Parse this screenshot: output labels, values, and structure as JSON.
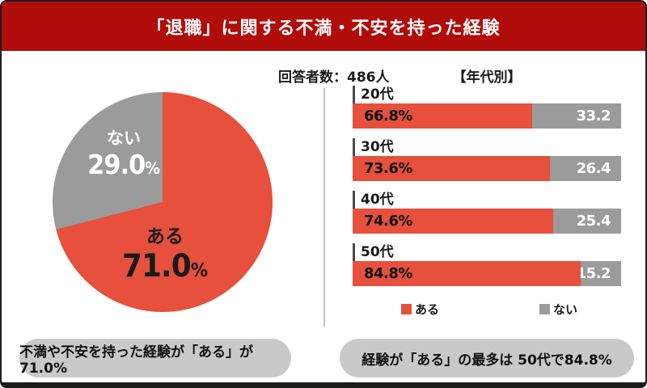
{
  "header": {
    "title": "「退職」に関する不満・不安を持った経験",
    "bg_color": "#b00d0a"
  },
  "meta": {
    "respondents": "回答者数：486人",
    "age_section_title": "【年代別】"
  },
  "colors": {
    "accent_red": "#e6503c",
    "gray": "#9b9b9b",
    "callout_bg": "#c9c9c9",
    "divider": "#c4c4c4"
  },
  "chart_data": [
    {
      "type": "pie",
      "title": "退職に関する不満・不安を持った経験",
      "slices": [
        {
          "label": "ある",
          "value": 71.0,
          "display": "71.0",
          "unit": "%",
          "color": "#e6503c"
        },
        {
          "label": "ない",
          "value": 29.0,
          "display": "29.0",
          "unit": "%",
          "color": "#9b9b9b"
        }
      ]
    },
    {
      "type": "bar",
      "subtype": "stacked-horizontal",
      "title": "年代別",
      "categories": [
        "20代",
        "30代",
        "40代",
        "50代"
      ],
      "series": [
        {
          "name": "ある",
          "color": "#e6503c",
          "values": [
            66.8,
            73.6,
            74.6,
            84.8
          ]
        },
        {
          "name": "ない",
          "color": "#9b9b9b",
          "values": [
            33.2,
            26.4,
            25.4,
            15.2
          ]
        }
      ],
      "xlim": [
        0,
        100
      ],
      "legend_position": "bottom"
    }
  ],
  "legend": [
    {
      "label": "ある",
      "color": "#e6503c"
    },
    {
      "label": "ない",
      "color": "#9b9b9b"
    }
  ],
  "callouts": {
    "left": "不満や不安を持った経験が「ある」が71.0%",
    "right": "経験が「ある」の最多は 50代で84.8%"
  }
}
